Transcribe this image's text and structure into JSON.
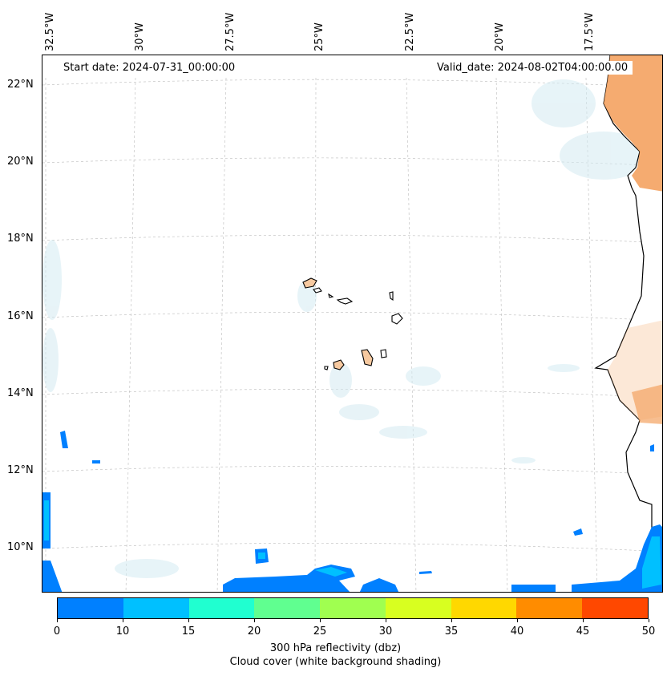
{
  "map": {
    "start_date": "Start date: 2024-07-31_00:00:00",
    "valid_date": "Valid_date: 2024-08-02T04:00:00.00",
    "lon_labels": [
      "32.5°W",
      "30°W",
      "27.5°W",
      "25°W",
      "22.5°W",
      "20°W",
      "17.5°W"
    ],
    "lat_labels": [
      "22°N",
      "20°N",
      "18°N",
      "16°N",
      "14°N",
      "12°N",
      "10°N"
    ],
    "land_color": "#f4a261",
    "cloud_color": "#cfe8ef"
  },
  "colorbar": {
    "levels": [
      "0",
      "10",
      "15",
      "20",
      "25",
      "30",
      "35",
      "40",
      "45",
      "50"
    ],
    "colors": [
      "#0080ff",
      "#00c0ff",
      "#20ffd0",
      "#60ff90",
      "#a0ff50",
      "#d8ff20",
      "#ffd800",
      "#ff8c00",
      "#ff4800"
    ],
    "label_line1": "300 hPa reflectivity (dbz)",
    "label_line2": "Cloud cover (white background shading)"
  }
}
